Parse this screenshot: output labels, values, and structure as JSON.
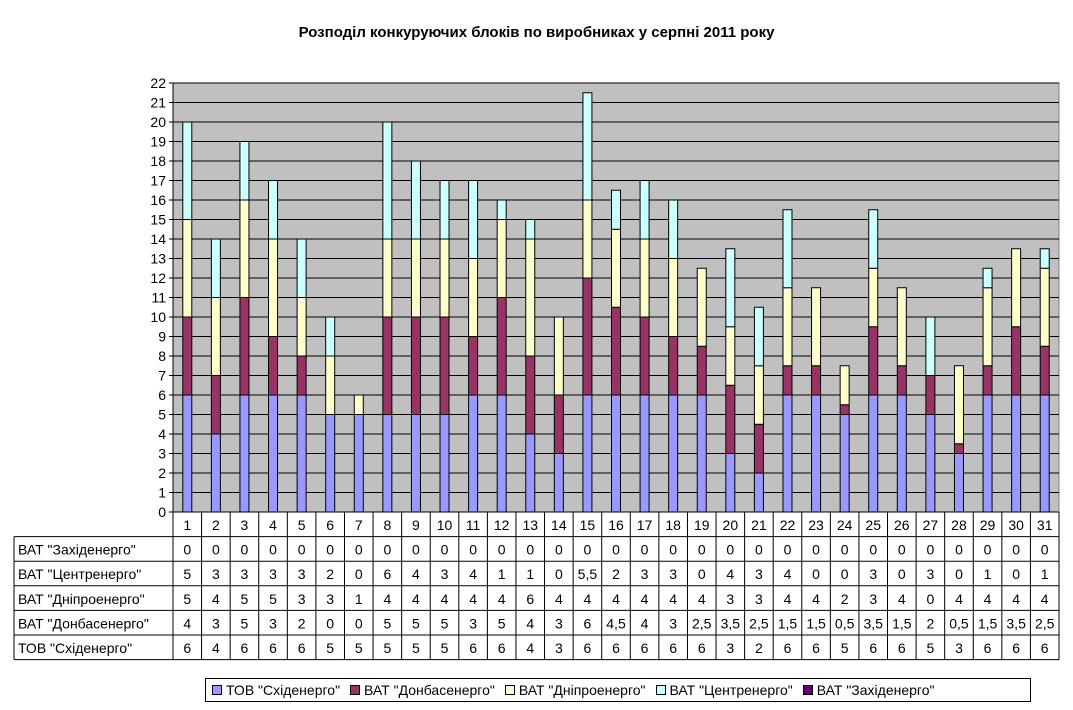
{
  "chart_data": {
    "type": "bar",
    "stacked": true,
    "title": "Розподіл конкуруючих блоків по виробниках у серпні 2011 року",
    "categories": [
      "1",
      "2",
      "3",
      "4",
      "5",
      "6",
      "7",
      "8",
      "9",
      "10",
      "11",
      "12",
      "13",
      "14",
      "15",
      "16",
      "17",
      "18",
      "19",
      "20",
      "21",
      "22",
      "23",
      "24",
      "25",
      "26",
      "27",
      "28",
      "29",
      "30",
      "31"
    ],
    "ylim": [
      0,
      22
    ],
    "yticks": [
      "0",
      "1",
      "2",
      "3",
      "4",
      "5",
      "6",
      "7",
      "8",
      "9",
      "10",
      "11",
      "12",
      "13",
      "14",
      "15",
      "16",
      "17",
      "18",
      "19",
      "20",
      "21",
      "22"
    ],
    "grid": true,
    "legend_position": "bottom",
    "series": [
      {
        "name": "ТОВ \"Східенерго\"",
        "color": "#9999ff",
        "values": [
          6,
          4,
          6,
          6,
          6,
          5,
          5,
          5,
          5,
          5,
          6,
          6,
          4,
          3,
          6,
          6,
          6,
          6,
          6,
          3,
          2,
          6,
          6,
          5,
          6,
          6,
          5,
          3,
          6,
          6,
          6
        ],
        "labels": [
          "6",
          "4",
          "6",
          "6",
          "6",
          "5",
          "5",
          "5",
          "5",
          "5",
          "6",
          "6",
          "4",
          "3",
          "6",
          "6",
          "6",
          "6",
          "6",
          "3",
          "2",
          "6",
          "6",
          "5",
          "6",
          "6",
          "5",
          "3",
          "6",
          "6",
          "6"
        ]
      },
      {
        "name": "ВАТ \"Донбасенерго\"",
        "color": "#993366",
        "values": [
          4,
          3,
          5,
          3,
          2,
          0,
          0,
          5,
          5,
          5,
          3,
          5,
          4,
          3,
          6,
          4.5,
          4,
          3,
          2.5,
          3.5,
          2.5,
          1.5,
          1.5,
          0.5,
          3.5,
          1.5,
          2,
          0.5,
          1.5,
          3.5,
          2.5
        ],
        "labels": [
          "4",
          "3",
          "5",
          "3",
          "2",
          "0",
          "0",
          "5",
          "5",
          "5",
          "3",
          "5",
          "4",
          "3",
          "6",
          "4,5",
          "4",
          "3",
          "2,5",
          "3,5",
          "2,5",
          "1,5",
          "1,5",
          "0,5",
          "3,5",
          "1,5",
          "2",
          "0,5",
          "1,5",
          "3,5",
          "2,5"
        ]
      },
      {
        "name": "ВАТ \"Дніпроенерго\"",
        "color": "#ffffcc",
        "values": [
          5,
          4,
          5,
          5,
          3,
          3,
          1,
          4,
          4,
          4,
          4,
          4,
          6,
          4,
          4,
          4,
          4,
          4,
          4,
          3,
          3,
          4,
          4,
          2,
          3,
          4,
          0,
          4,
          4,
          4,
          4
        ],
        "labels": [
          "5",
          "4",
          "5",
          "5",
          "3",
          "3",
          "1",
          "4",
          "4",
          "4",
          "4",
          "4",
          "6",
          "4",
          "4",
          "4",
          "4",
          "4",
          "4",
          "3",
          "3",
          "4",
          "4",
          "2",
          "3",
          "4",
          "0",
          "4",
          "4",
          "4",
          "4"
        ]
      },
      {
        "name": "ВАТ \"Центренерго\"",
        "color": "#ccffff",
        "values": [
          5,
          3,
          3,
          3,
          3,
          2,
          0,
          6,
          4,
          3,
          4,
          1,
          1,
          0,
          5.5,
          2,
          3,
          3,
          0,
          4,
          3,
          4,
          0,
          0,
          3,
          0,
          3,
          0,
          1,
          0,
          1
        ],
        "labels": [
          "5",
          "3",
          "3",
          "3",
          "3",
          "2",
          "0",
          "6",
          "4",
          "3",
          "4",
          "1",
          "1",
          "0",
          "5,5",
          "2",
          "3",
          "3",
          "0",
          "4",
          "3",
          "4",
          "0",
          "0",
          "3",
          "0",
          "3",
          "0",
          "1",
          "0",
          "1"
        ]
      },
      {
        "name": "ВАТ \"Західенерго\"",
        "color": "#660066",
        "values": [
          0,
          0,
          0,
          0,
          0,
          0,
          0,
          0,
          0,
          0,
          0,
          0,
          0,
          0,
          0,
          0,
          0,
          0,
          0,
          0,
          0,
          0,
          0,
          0,
          0,
          0,
          0,
          0,
          0,
          0,
          0
        ],
        "labels": [
          "0",
          "0",
          "0",
          "0",
          "0",
          "0",
          "0",
          "0",
          "0",
          "0",
          "0",
          "0",
          "0",
          "0",
          "0",
          "0",
          "0",
          "0",
          "0",
          "0",
          "0",
          "0",
          "0",
          "0",
          "0",
          "0",
          "0",
          "0",
          "0",
          "0",
          "0"
        ]
      }
    ]
  }
}
